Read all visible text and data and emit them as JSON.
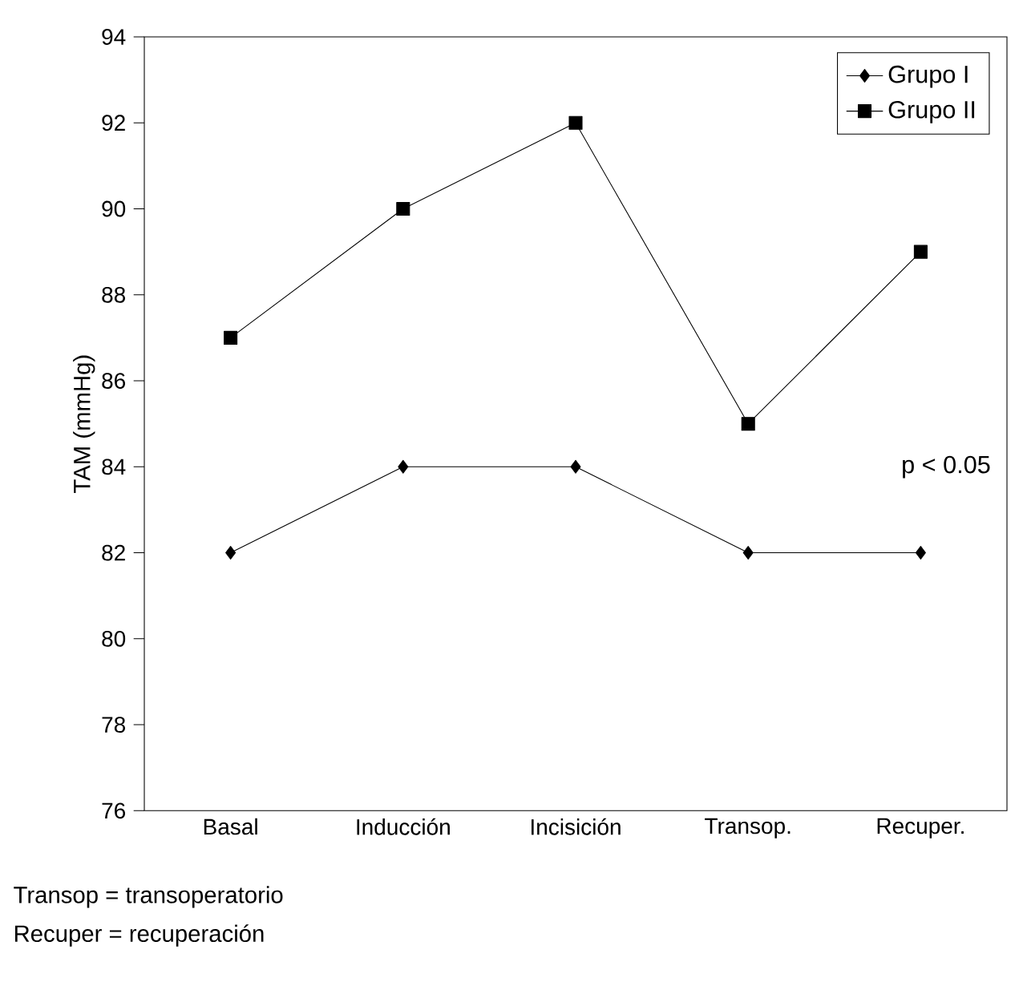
{
  "chart_data": {
    "type": "line",
    "ylabel": "TAM (mmHg)",
    "categories": [
      "Basal",
      "Inducción",
      "Incisición",
      "Transop.",
      "Recuper."
    ],
    "series": [
      {
        "name": "Grupo I",
        "color": "#000000",
        "marker": "diamond",
        "values": [
          82,
          84,
          84,
          82,
          82
        ]
      },
      {
        "name": "Grupo II",
        "color": "#000000",
        "marker": "square",
        "values": [
          87,
          90,
          92,
          85,
          89
        ]
      }
    ],
    "ylim": [
      76,
      94
    ],
    "yticks": [
      76,
      78,
      80,
      82,
      84,
      86,
      88,
      90,
      92,
      94
    ],
    "legend": "top right",
    "line_style": "solid",
    "grid": false,
    "annotations": [
      "p < 0.05",
      "Transop = transoperatorio",
      "Recuper = recuperación"
    ]
  }
}
